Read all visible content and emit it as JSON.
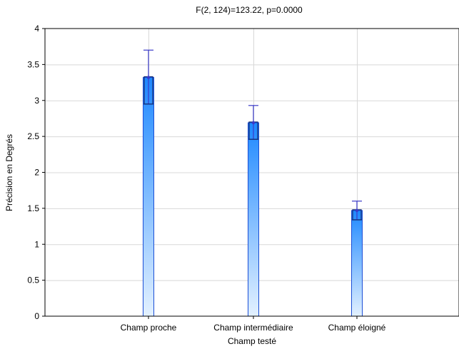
{
  "chart_data": {
    "type": "bar",
    "title": "F(2, 124)=123.22, p=0.0000",
    "xlabel": "Champ testé",
    "ylabel": "Précision en Degrés",
    "categories": [
      "Champ proche",
      "Champ intermédiaire",
      "Champ éloigné"
    ],
    "values": [
      3.32,
      2.69,
      1.47
    ],
    "se_lower": [
      2.95,
      2.46,
      1.34
    ],
    "se_upper": [
      3.33,
      2.7,
      1.48
    ],
    "ci_lower": [
      2.95,
      2.46,
      1.34
    ],
    "ci_upper": [
      3.7,
      2.93,
      1.6
    ],
    "ylim": [
      0,
      4
    ],
    "y_ticks": [
      0,
      0.5,
      1,
      1.5,
      2,
      2.5,
      3,
      3.5,
      4
    ],
    "y_tick_labels": [
      "0",
      "0.5",
      "1",
      "1.5",
      "2",
      "2.5",
      "3",
      "3.5",
      "4"
    ],
    "grid": true,
    "colors": {
      "bar_top": "#1e88ff",
      "bar_bottom": "#e3f1ff",
      "bar_edge": "#1c4fd6",
      "error_bar": "#3a3ac8",
      "inner_bar": "#15307a",
      "grid": "#d8d8d8",
      "axis": "#000000"
    }
  }
}
